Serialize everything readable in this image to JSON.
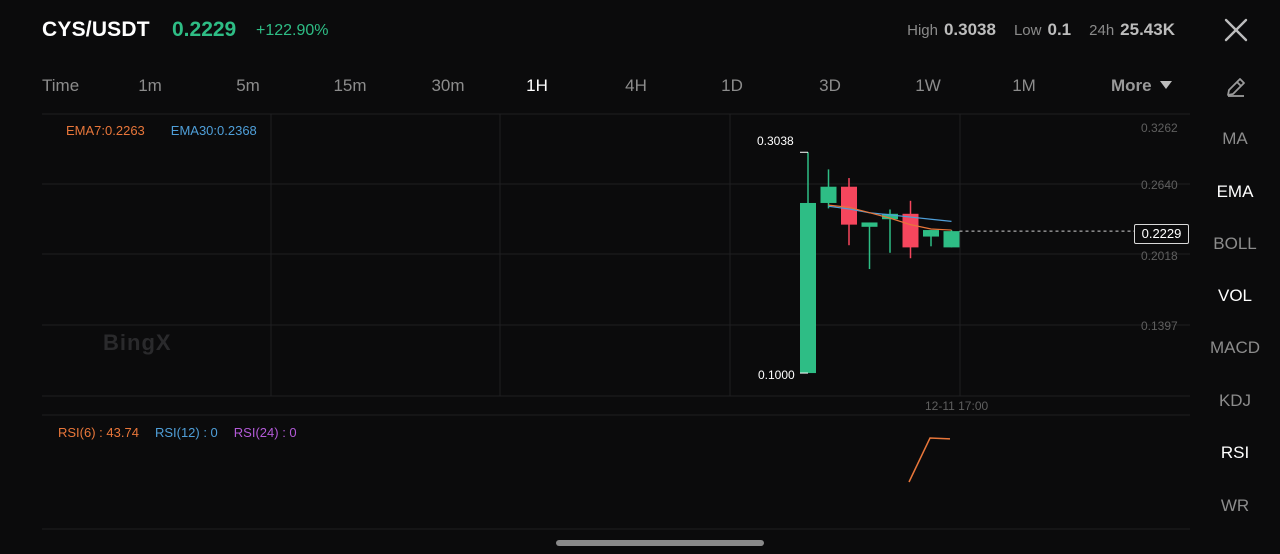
{
  "header": {
    "pair": "CYS/USDT",
    "price": "0.2229",
    "change": "+122.90%",
    "high_label": "High",
    "high_value": "0.3038",
    "low_label": "Low",
    "low_value": "0.1",
    "vol_label": "24h",
    "vol_value": "25.43K",
    "close_icon": "close-icon"
  },
  "timeframes": {
    "items": [
      "Time",
      "1m",
      "5m",
      "15m",
      "30m",
      "1H",
      "4H",
      "1D",
      "3D",
      "1W",
      "1M"
    ],
    "active": "1H",
    "more_label": "More"
  },
  "indicators": {
    "edit_icon": "pencil-icon",
    "items": [
      "MA",
      "EMA",
      "BOLL",
      "VOL",
      "MACD",
      "KDJ",
      "RSI",
      "WR"
    ],
    "active": [
      "EMA",
      "VOL",
      "RSI"
    ]
  },
  "main_chart": {
    "ema7_label": "EMA7:0.2263",
    "ema30_label": "EMA30:0.2368",
    "watermark": "BingX",
    "y_ticks": [
      "0.3262",
      "0.2640",
      "0.2018",
      "0.1397"
    ],
    "current_price": "0.2229",
    "high_marker": "0.3038",
    "low_marker": "0.1000",
    "x_label": "12-11 17:00",
    "colors": {
      "up": "#2ebd85",
      "down": "#f6465d",
      "ema7": "#e8763a",
      "ema30": "#4f9fd9"
    }
  },
  "rsi_panel": {
    "rsi6_label": "RSI(6) : 43.74",
    "rsi12_label": "RSI(12) : 0",
    "rsi24_label": "RSI(24) : 0",
    "colors": {
      "rsi6": "#e8763a",
      "rsi12": "#4f9fd9",
      "rsi24": "#b35ad8"
    }
  },
  "chart_data": {
    "type": "candlestick",
    "ylim": [
      0.0779,
      0.3262
    ],
    "y_ticks": [
      0.3262,
      0.264,
      0.2018,
      0.1397
    ],
    "candles": [
      {
        "o": 0.1,
        "h": 0.3038,
        "l": 0.1,
        "c": 0.257
      },
      {
        "o": 0.257,
        "h": 0.288,
        "l": 0.252,
        "c": 0.272
      },
      {
        "o": 0.272,
        "h": 0.28,
        "l": 0.218,
        "c": 0.237
      },
      {
        "o": 0.235,
        "h": 0.239,
        "l": 0.196,
        "c": 0.239
      },
      {
        "o": 0.242,
        "h": 0.251,
        "l": 0.211,
        "c": 0.247
      },
      {
        "o": 0.247,
        "h": 0.259,
        "l": 0.206,
        "c": 0.216
      },
      {
        "o": 0.226,
        "h": 0.232,
        "l": 0.217,
        "c": 0.232
      },
      {
        "o": 0.216,
        "h": 0.232,
        "l": 0.216,
        "c": 0.231
      }
    ],
    "ema7": [
      0.255,
      0.253,
      0.248,
      0.243,
      0.237,
      0.233,
      0.232
    ],
    "ema30": [
      0.254,
      0.2515,
      0.248,
      0.246,
      0.244,
      0.242,
      0.24
    ],
    "rsi6": [
      0,
      100,
      98
    ]
  }
}
